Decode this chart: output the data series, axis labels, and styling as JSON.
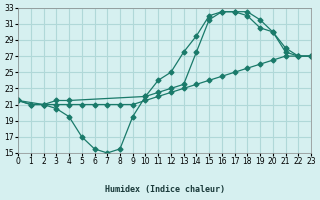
{
  "xlabel": "Humidex (Indice chaleur)",
  "bg_color": "#d6f0f0",
  "grid_color": "#b0d8d8",
  "line_color": "#1a7a6a",
  "xlim": [
    0,
    23
  ],
  "ylim": [
    15,
    33
  ],
  "xticks": [
    0,
    1,
    2,
    3,
    4,
    5,
    6,
    7,
    8,
    9,
    10,
    11,
    12,
    13,
    14,
    15,
    16,
    17,
    18,
    19,
    20,
    21,
    22,
    23
  ],
  "yticks": [
    15,
    17,
    19,
    21,
    23,
    25,
    27,
    29,
    31,
    33
  ],
  "line1_x": [
    0,
    1,
    2,
    3,
    4,
    5,
    6,
    7,
    8,
    9,
    10,
    11,
    12,
    13,
    14,
    15,
    16,
    17,
    18,
    19,
    20,
    21,
    22,
    23
  ],
  "line1_y": [
    21.5,
    21.0,
    21.0,
    21.0,
    21.0,
    21.0,
    21.0,
    21.0,
    21.0,
    21.0,
    21.5,
    22.0,
    22.5,
    23.0,
    23.5,
    24.0,
    24.5,
    25.0,
    25.5,
    26.0,
    26.5,
    27.0,
    27.0,
    27.0
  ],
  "line2_x": [
    0,
    1,
    2,
    3,
    4,
    5,
    6,
    7,
    8,
    9,
    10,
    11,
    12,
    13,
    14,
    15,
    16,
    17,
    18,
    19,
    20,
    21,
    22,
    23
  ],
  "line2_y": [
    21.5,
    21.0,
    21.0,
    20.5,
    19.5,
    17.0,
    15.5,
    15.0,
    15.5,
    19.5,
    22.0,
    24.0,
    25.0,
    27.5,
    29.5,
    32.0,
    32.5,
    32.5,
    32.0,
    30.5,
    30.0,
    28.0,
    27.0,
    27.0
  ],
  "line3_x": [
    0,
    2,
    3,
    4,
    10,
    11,
    12,
    13,
    14,
    15,
    16,
    17,
    18,
    19,
    20,
    21,
    22,
    23
  ],
  "line3_y": [
    21.5,
    21.0,
    21.5,
    21.5,
    22.0,
    22.5,
    23.0,
    23.5,
    27.5,
    31.5,
    32.5,
    32.5,
    32.5,
    31.5,
    30.0,
    27.5,
    27.0,
    27.0
  ]
}
